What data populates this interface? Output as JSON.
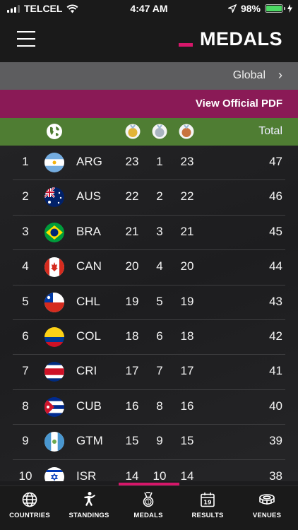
{
  "status_bar": {
    "carrier": "TELCEL",
    "time": "4:47 AM",
    "battery": "98%",
    "icons": [
      "signal-icon",
      "wifi-icon",
      "location-arrow-icon",
      "battery-icon",
      "charging-icon"
    ]
  },
  "header": {
    "title": "MEDALS",
    "menu_icon": "hamburger-icon",
    "accent_color": "#d6176a"
  },
  "global_row": {
    "label": "Global",
    "chevron": "›"
  },
  "pdf_row": {
    "label": "View Official PDF"
  },
  "table": {
    "header_total": "Total",
    "header_icons": [
      "globe-icon",
      "gold-medal-icon",
      "silver-medal-icon",
      "bronze-medal-icon"
    ],
    "rows": [
      {
        "rank": "1",
        "code": "ARG",
        "gold": "23",
        "silver": "1",
        "bronze": "23",
        "total": "47",
        "flag": "argentina-flag-icon"
      },
      {
        "rank": "2",
        "code": "AUS",
        "gold": "22",
        "silver": "2",
        "bronze": "22",
        "total": "46",
        "flag": "australia-flag-icon"
      },
      {
        "rank": "3",
        "code": "BRA",
        "gold": "21",
        "silver": "3",
        "bronze": "21",
        "total": "45",
        "flag": "brazil-flag-icon"
      },
      {
        "rank": "4",
        "code": "CAN",
        "gold": "20",
        "silver": "4",
        "bronze": "20",
        "total": "44",
        "flag": "canada-flag-icon"
      },
      {
        "rank": "5",
        "code": "CHL",
        "gold": "19",
        "silver": "5",
        "bronze": "19",
        "total": "43",
        "flag": "chile-flag-icon"
      },
      {
        "rank": "6",
        "code": "COL",
        "gold": "18",
        "silver": "6",
        "bronze": "18",
        "total": "42",
        "flag": "colombia-flag-icon"
      },
      {
        "rank": "7",
        "code": "CRI",
        "gold": "17",
        "silver": "7",
        "bronze": "17",
        "total": "41",
        "flag": "costa-rica-flag-icon"
      },
      {
        "rank": "8",
        "code": "CUB",
        "gold": "16",
        "silver": "8",
        "bronze": "16",
        "total": "40",
        "flag": "cuba-flag-icon"
      },
      {
        "rank": "9",
        "code": "GTM",
        "gold": "15",
        "silver": "9",
        "bronze": "15",
        "total": "39",
        "flag": "guatemala-flag-icon"
      },
      {
        "rank": "10",
        "code": "ISR",
        "gold": "14",
        "silver": "10",
        "bronze": "14",
        "total": "38",
        "flag": "israel-flag-icon"
      }
    ]
  },
  "bottom_nav": {
    "items": [
      {
        "label": "COUNTRIES",
        "icon": "globe-icon"
      },
      {
        "label": "STANDINGS",
        "icon": "athlete-icon"
      },
      {
        "label": "MEDALS",
        "icon": "medal-icon"
      },
      {
        "label": "RESULTS",
        "icon": "calendar-icon"
      },
      {
        "label": "VENUES",
        "icon": "stadium-icon"
      }
    ],
    "active_index": 2
  },
  "colors": {
    "background": "#1c1c1e",
    "global_row": "#5d5d5f",
    "pdf_row": "#8a1a56",
    "table_header": "#4f7d33",
    "accent": "#d6176a"
  }
}
